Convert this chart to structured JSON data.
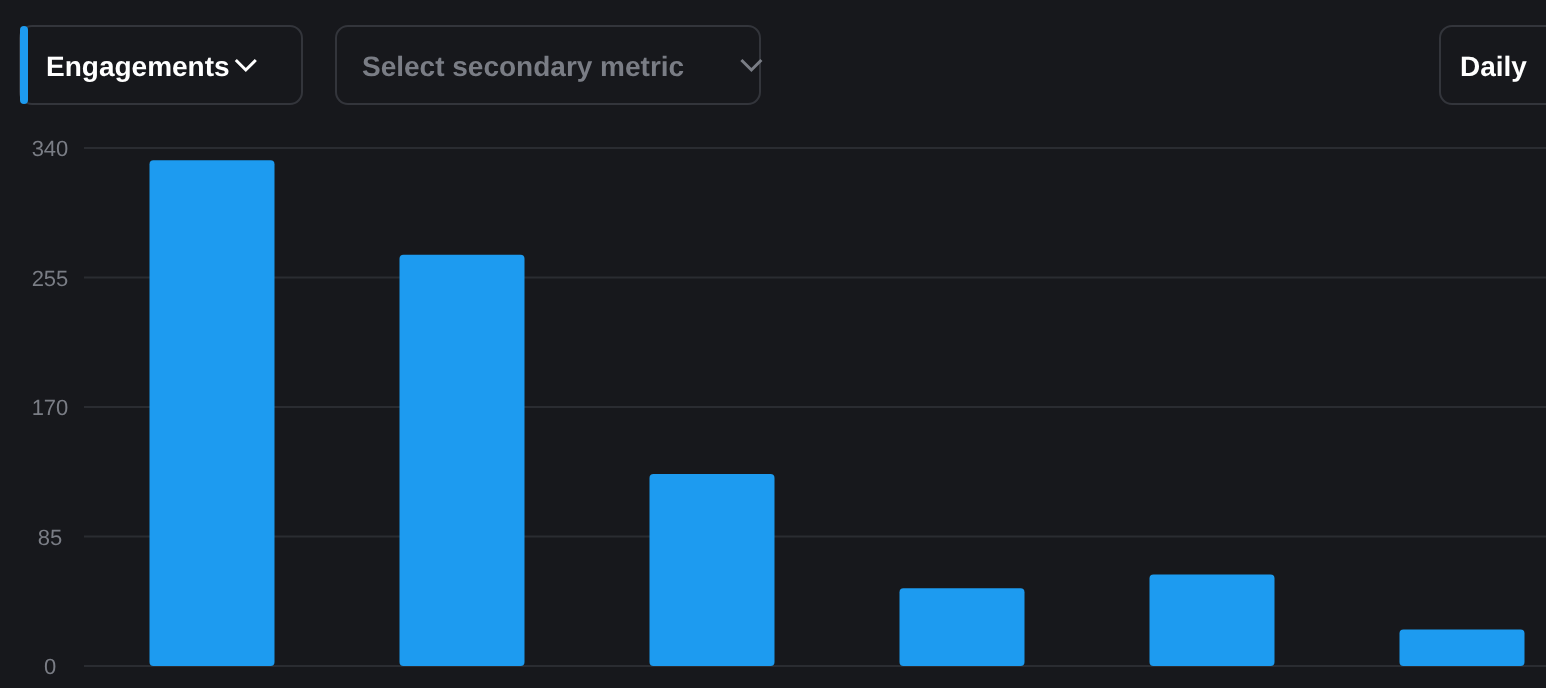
{
  "chart_data": {
    "type": "bar",
    "categories": [
      null,
      null,
      null,
      null,
      null,
      null
    ],
    "values": [
      332,
      270,
      126,
      51,
      60,
      24
    ],
    "color": "#1d9bf0",
    "ylim": [
      0,
      340
    ],
    "yticks": [
      0,
      85,
      170,
      255,
      340
    ],
    "grid": "y",
    "annotations": [
      "Engagements",
      "Select secondary metric",
      "Daily"
    ]
  }
}
